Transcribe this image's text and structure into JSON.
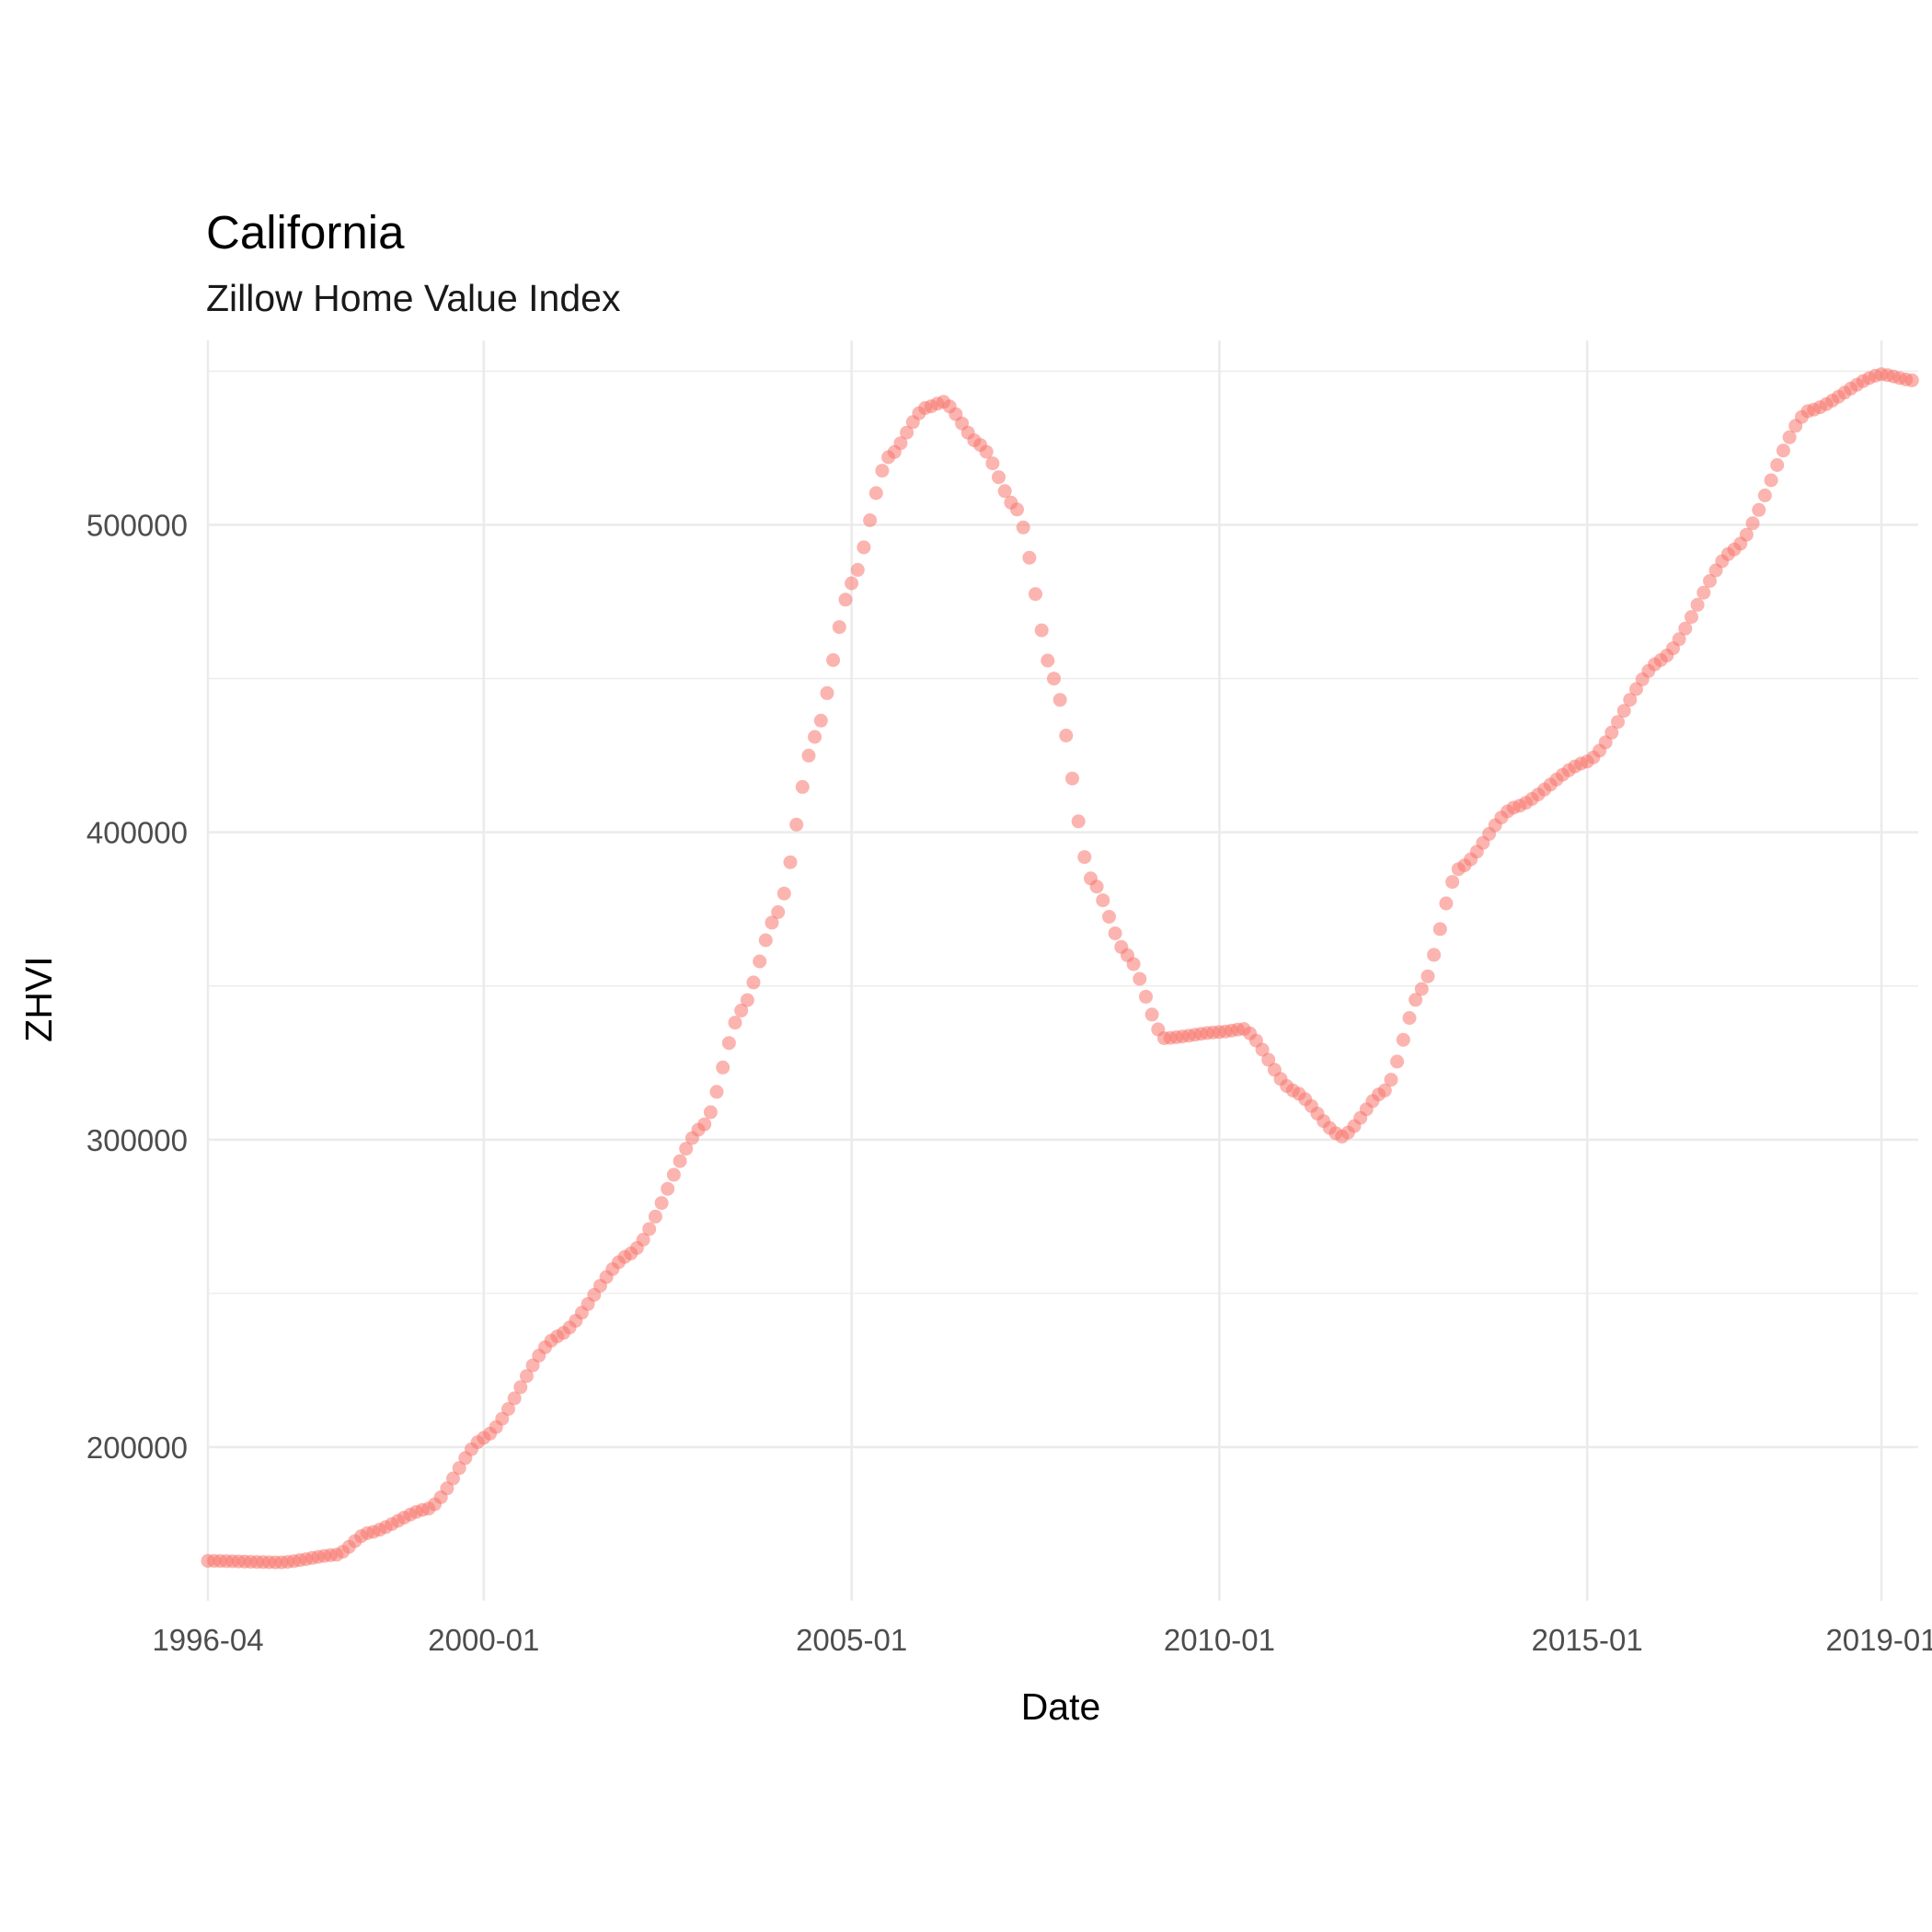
{
  "chart_data": {
    "type": "scatter",
    "title": "California",
    "subtitle": "Zillow Home Value Index",
    "xlabel": "Date",
    "ylabel": "ZHVI",
    "x_range": [
      "1996-04",
      "2019-07"
    ],
    "ylim": [
      150000,
      560000
    ],
    "grid": true,
    "point_color": "#F8766D",
    "point_opacity": 0.55,
    "x_ticks": [
      "1996-04",
      "2000-01",
      "2005-01",
      "2010-01",
      "2015-01",
      "2019-01"
    ],
    "y_ticks": [
      200000,
      300000,
      400000,
      500000
    ],
    "y_tick_labels": [
      "200000",
      "300000",
      "400000",
      "500000"
    ],
    "series": [
      {
        "anchors": [
          [
            "1996-04",
            163000
          ],
          [
            "1997-04",
            162500
          ],
          [
            "1998-01",
            165000
          ],
          [
            "1998-06",
            172000
          ],
          [
            "1999-04",
            180000
          ],
          [
            "2000-01",
            203000
          ],
          [
            "2001-01",
            236000
          ],
          [
            "2002-01",
            263000
          ],
          [
            "2003-01",
            305000
          ],
          [
            "2003-07",
            342000
          ],
          [
            "2004-01",
            374000
          ],
          [
            "2004-07",
            431000
          ],
          [
            "2005-01",
            481000
          ],
          [
            "2005-07",
            522000
          ],
          [
            "2006-01",
            538000
          ],
          [
            "2006-04",
            540000
          ],
          [
            "2006-10",
            526000
          ],
          [
            "2007-04",
            505000
          ],
          [
            "2007-10",
            450000
          ],
          [
            "2008-04",
            385000
          ],
          [
            "2008-10",
            360000
          ],
          [
            "2009-04",
            333000
          ],
          [
            "2010-01",
            335000
          ],
          [
            "2010-05",
            336000
          ],
          [
            "2011-01",
            316000
          ],
          [
            "2011-09",
            301000
          ],
          [
            "2012-04",
            316000
          ],
          [
            "2012-10",
            349000
          ],
          [
            "2013-04",
            388000
          ],
          [
            "2014-01",
            408000
          ],
          [
            "2015-01",
            423000
          ],
          [
            "2016-01",
            456000
          ],
          [
            "2017-01",
            492000
          ],
          [
            "2018-01",
            537000
          ],
          [
            "2019-01",
            549000
          ],
          [
            "2019-06",
            547000
          ]
        ]
      }
    ]
  }
}
